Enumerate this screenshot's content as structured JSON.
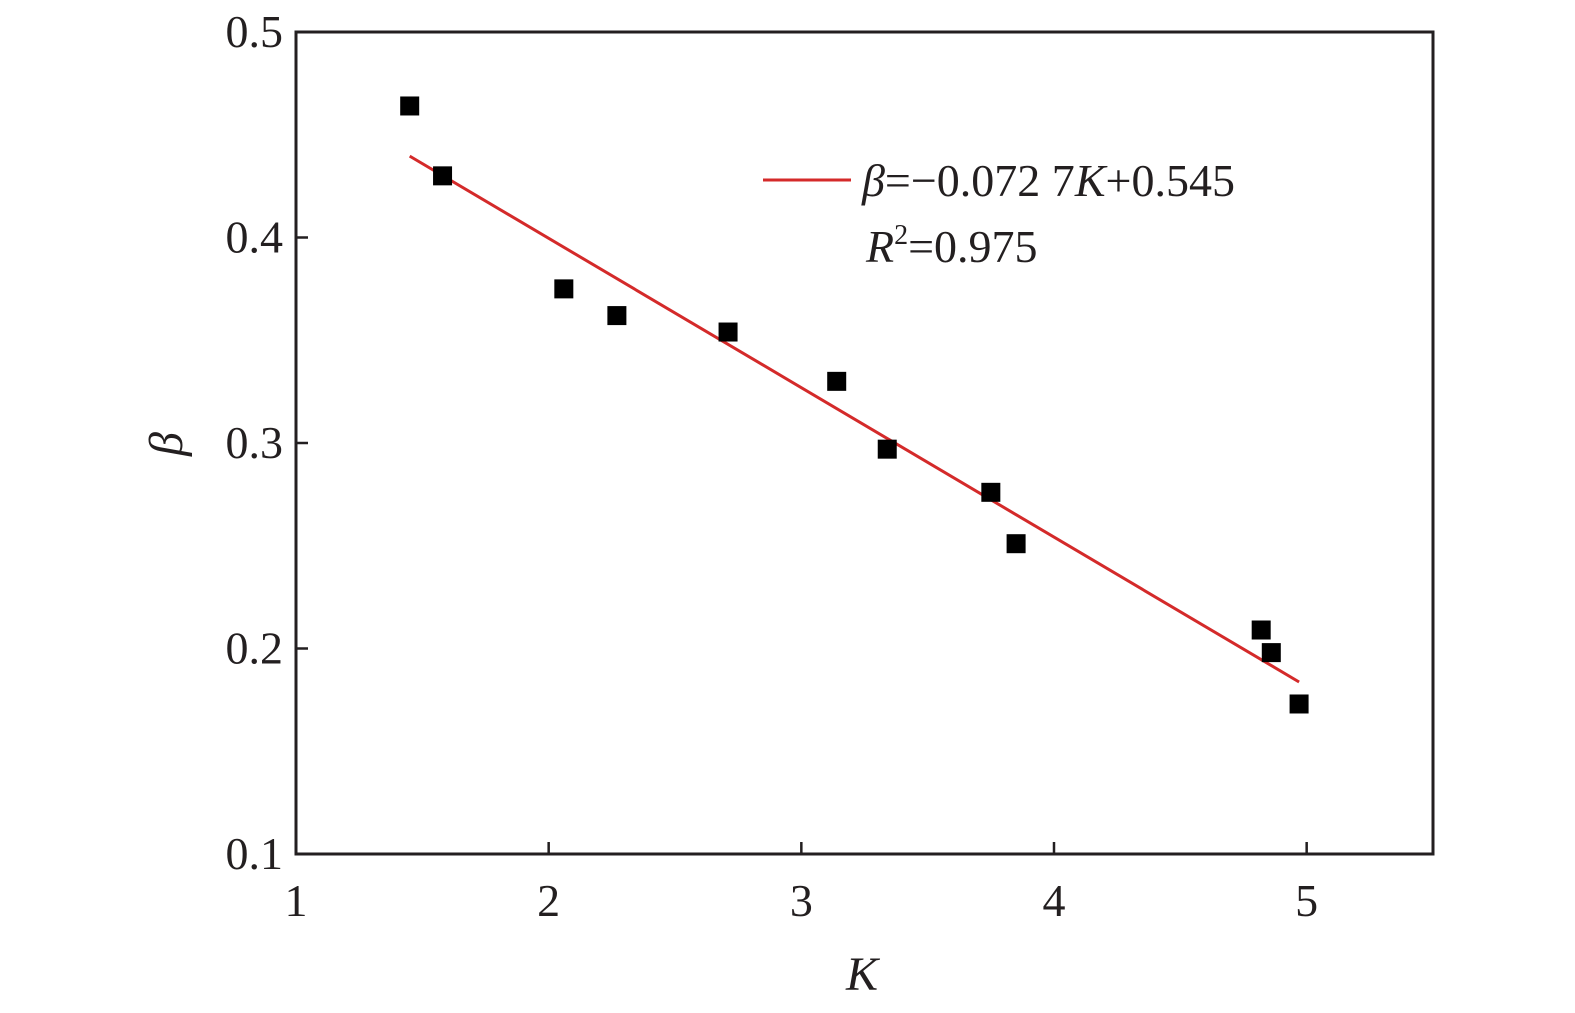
{
  "chart_data": {
    "type": "scatter",
    "xlabel": "K",
    "ylabel": "β",
    "xlim": [
      1,
      5.5
    ],
    "ylim": [
      0.1,
      0.5
    ],
    "xticks": [
      1,
      2,
      3,
      4,
      5
    ],
    "yticks": [
      0.1,
      0.2,
      0.3,
      0.4,
      0.5
    ],
    "xtick_labels": [
      "1",
      "2",
      "3",
      "4",
      "5"
    ],
    "ytick_labels": [
      "0.1",
      "0.2",
      "0.3",
      "0.4",
      "0.5"
    ],
    "grid": false,
    "legend_position": "top-right",
    "series": [
      {
        "type": "scatter",
        "marker": "square",
        "color": "#000000",
        "x": [
          1.45,
          1.58,
          2.06,
          2.27,
          2.71,
          3.14,
          3.34,
          3.75,
          3.85,
          4.82,
          4.86,
          4.97
        ],
        "y": [
          0.464,
          0.43,
          0.375,
          0.362,
          0.354,
          0.33,
          0.297,
          0.276,
          0.251,
          0.209,
          0.198,
          0.173
        ]
      },
      {
        "type": "line",
        "color": "#d42a2a",
        "x": [
          1.45,
          4.97
        ],
        "y": [
          0.4396,
          0.1837
        ]
      }
    ],
    "legend": {
      "equation": {
        "beta": "β",
        "body": "=−0.072 7",
        "k": "K",
        "tail": "+0.545"
      },
      "r2": {
        "r": "R",
        "sup": "2",
        "body": "=0.975"
      }
    }
  }
}
